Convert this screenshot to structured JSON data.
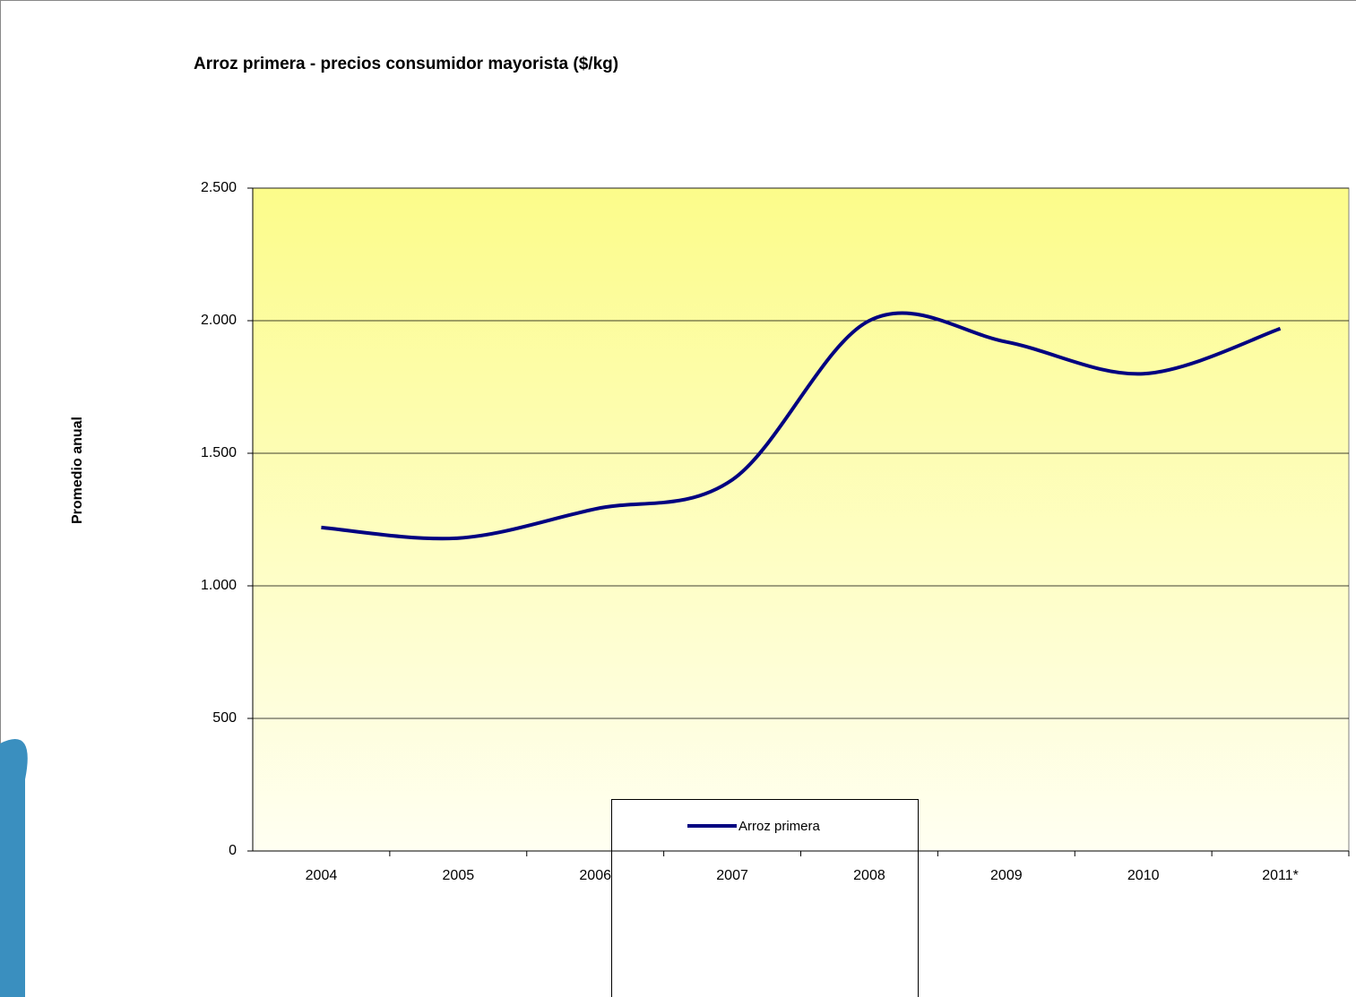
{
  "chart_data": {
    "type": "line",
    "title": "Arroz primera - precios consumidor mayorista ($/kg)",
    "y_label": "Promedio anual",
    "categories": [
      "2004",
      "2005",
      "2006",
      "2007",
      "2008",
      "2009",
      "2010",
      "2011*"
    ],
    "series": [
      {
        "name": "Arroz primera",
        "color": "#000080",
        "values": [
          1220,
          1180,
          1290,
          1400,
          2000,
          1920,
          1800,
          1970
        ]
      }
    ],
    "ylim": [
      0,
      2500
    ],
    "yticks": [
      0,
      500,
      {
        "value": 1000,
        "label": "1.000"
      },
      {
        "value": 1500,
        "label": "1.500"
      },
      {
        "value": 2000,
        "label": "2.000"
      },
      {
        "value": 2500,
        "label": "2.500"
      }
    ],
    "grid": true,
    "smooth": true
  }
}
